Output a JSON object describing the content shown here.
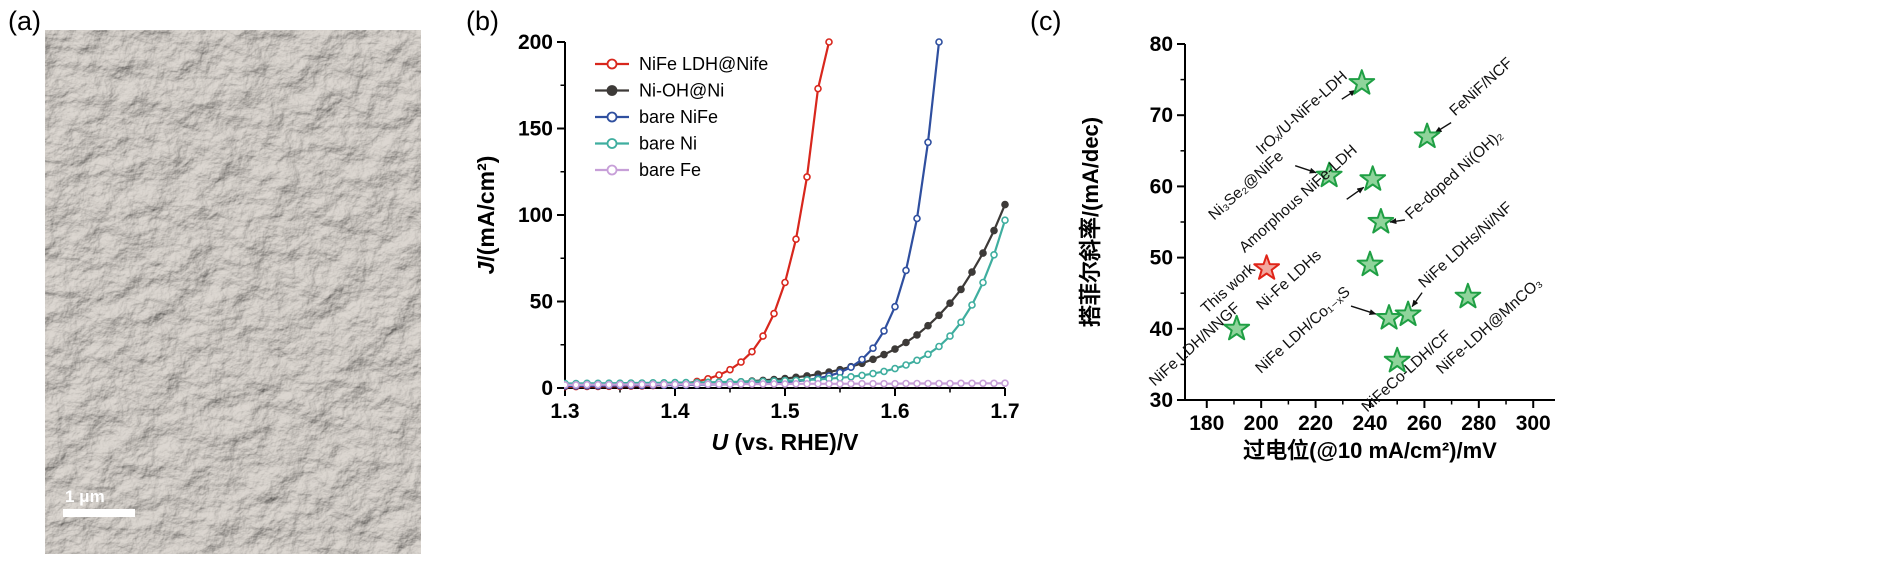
{
  "page": {
    "background": "#ffffff"
  },
  "panel_labels": {
    "a": "(a)",
    "b": "(b)",
    "c": "(c)"
  },
  "panel_a": {
    "description": "SEM image of nanosheet array",
    "scale_bar_label": "1 μm"
  },
  "chart_data": [
    {
      "id": "lsv_curves",
      "panel": "b",
      "type": "line",
      "xlabel": {
        "italic": "U",
        "rest": " (vs. RHE)/V"
      },
      "ylabel": {
        "italic": "J",
        "rest": "/(mA/cm²)"
      },
      "xlim": [
        1.3,
        1.7
      ],
      "ylim": [
        0,
        200
      ],
      "xticks": [
        1.3,
        1.4,
        1.5,
        1.6,
        1.7
      ],
      "xtick_labels": [
        "1.3",
        "1.4",
        "1.5",
        "1.6",
        "1.7"
      ],
      "xticks_minor": [
        1.35,
        1.45,
        1.55,
        1.65
      ],
      "yticks": [
        0,
        50,
        100,
        150,
        200
      ],
      "ytick_labels": [
        "0",
        "50",
        "100",
        "150",
        "200"
      ],
      "yticks_minor": [
        25,
        75,
        125,
        175
      ],
      "legend_position": "top-left",
      "x_start": 1.3,
      "x_step": 0.01,
      "series": [
        {
          "name": "NiFe LDH@Nife",
          "color": "#d8271d",
          "marker": "open",
          "y": [
            0.8,
            0.8,
            0.9,
            0.9,
            1.0,
            1.0,
            1.1,
            1.2,
            1.4,
            1.7,
            2.1,
            2.8,
            3.8,
            5.3,
            7.5,
            10.6,
            15,
            21,
            30,
            43,
            61,
            86,
            122,
            173,
            200
          ]
        },
        {
          "name": "Ni-OH@Ni",
          "color": "#3d3a38",
          "marker": "filled",
          "y": [
            1.5,
            1.5,
            1.6,
            1.6,
            1.7,
            1.7,
            1.8,
            1.9,
            2.0,
            2.1,
            2.2,
            2.4,
            2.6,
            2.8,
            3.0,
            3.3,
            3.6,
            4.0,
            4.4,
            4.9,
            5.5,
            6.2,
            7.0,
            8.0,
            9.2,
            10.6,
            12.3,
            14.3,
            16.6,
            19.3,
            22.5,
            26.3,
            30.7,
            36,
            42,
            49,
            57,
            67,
            78,
            91,
            106
          ]
        },
        {
          "name": "bare NiFe",
          "color": "#2f4f9f",
          "marker": "open",
          "y": [
            1.2,
            1.2,
            1.3,
            1.3,
            1.4,
            1.4,
            1.5,
            1.5,
            1.6,
            1.6,
            1.7,
            1.8,
            1.9,
            2.0,
            2.1,
            2.2,
            2.4,
            2.6,
            2.8,
            3.1,
            3.4,
            3.9,
            4.6,
            5.6,
            7.0,
            9.0,
            12,
            16.5,
            23,
            33,
            47,
            68,
            98,
            142,
            200
          ]
        },
        {
          "name": "bare Ni",
          "color": "#3fae9f",
          "marker": "open",
          "y": [
            2.6,
            2.6,
            2.7,
            2.7,
            2.8,
            2.8,
            2.9,
            2.9,
            3.0,
            3.0,
            3.1,
            3.1,
            3.2,
            3.3,
            3.4,
            3.5,
            3.6,
            3.7,
            3.8,
            4.0,
            4.2,
            4.4,
            4.7,
            5.0,
            5.4,
            5.9,
            6.5,
            7.3,
            8.3,
            9.6,
            11.2,
            13.3,
            16,
            19.5,
            24,
            30,
            38,
            48,
            61,
            77,
            97
          ]
        },
        {
          "name": "bare Fe",
          "color": "#c79fd8",
          "marker": "open",
          "y": [
            1.8,
            1.8,
            1.9,
            1.9,
            1.9,
            2.0,
            2.0,
            2.0,
            2.1,
            2.1,
            2.1,
            2.1,
            2.2,
            2.2,
            2.2,
            2.2,
            2.3,
            2.3,
            2.3,
            2.3,
            2.3,
            2.4,
            2.4,
            2.4,
            2.4,
            2.4,
            2.5,
            2.5,
            2.5,
            2.5,
            2.5,
            2.6,
            2.6,
            2.6,
            2.6,
            2.6,
            2.7,
            2.7,
            2.7,
            2.7,
            2.8
          ]
        }
      ]
    },
    {
      "id": "tafel_vs_overpotential",
      "panel": "c",
      "type": "scatter",
      "xlabel": {
        "italic": "",
        "rest": "过电位(@10 mA/cm²)/mV"
      },
      "ylabel": {
        "italic": "",
        "rest": "搭菲尔斜率/(mA/dec)"
      },
      "xlim": [
        172,
        308
      ],
      "ylim": [
        30,
        80
      ],
      "xticks": [
        180,
        200,
        220,
        240,
        260,
        280,
        300
      ],
      "xtick_labels": [
        "180",
        "200",
        "220",
        "240",
        "260",
        "280",
        "300"
      ],
      "xticks_minor": [
        190,
        210,
        230,
        250,
        270,
        290
      ],
      "yticks": [
        30,
        40,
        50,
        60,
        70,
        80
      ],
      "ytick_labels": [
        "30",
        "40",
        "50",
        "60",
        "70",
        "80"
      ],
      "yticks_minor": [
        35,
        45,
        55,
        65,
        75
      ],
      "marker": "star",
      "label_rotation": -42,
      "colors": {
        "star_green_stroke": "#1f9f44",
        "star_green_fill": "#8fd49b",
        "star_red_stroke": "#e02418",
        "star_red_fill": "#f2a79e"
      },
      "points": [
        {
          "label": "IrOₓ/U-NiFe-LDH",
          "x": 237,
          "y": 74.5,
          "color": "green",
          "label_offset": [
            -100,
            72
          ],
          "arrow": [
            -20,
            16,
            -6,
            7
          ]
        },
        {
          "label": "FeNiF/NCF",
          "x": 261,
          "y": 67,
          "color": "green",
          "label_offset": [
            28,
            -20
          ],
          "arrow": [
            24,
            -14,
            8,
            -4
          ]
        },
        {
          "label": "Ni₃Se₂@NiFe",
          "x": 225,
          "y": 61.5,
          "color": "green",
          "label_offset": [
            -115,
            45
          ],
          "arrow": [
            -34,
            -10,
            -13,
            -3
          ]
        },
        {
          "label": "Amorphous NiFe-LDH",
          "x": 241,
          "y": 61,
          "color": "green",
          "label_offset": [
            -128,
            74
          ],
          "arrow": [
            -26,
            20,
            -9,
            8
          ]
        },
        {
          "label": "Fe-doped Ni(OH)₂",
          "x": 244,
          "y": 55,
          "color": "green",
          "label_offset": [
            30,
            -2
          ],
          "arrow": [
            24,
            -2,
            9,
            0
          ]
        },
        {
          "label": "Ni-Fe LDHs",
          "x": 240,
          "y": 49,
          "color": "green",
          "label_offset": [
            -108,
            46
          ],
          "arrow": null
        },
        {
          "label": "This work",
          "x": 202,
          "y": 48.5,
          "color": "red",
          "label_offset": [
            -60,
            46
          ],
          "arrow": null
        },
        {
          "label": "NiFe LDH/NNGF",
          "x": 191,
          "y": 40,
          "color": "green",
          "label_offset": [
            -82,
            58
          ],
          "arrow": null
        },
        {
          "label": "NiFe LDH/Co₁₋ₓS",
          "x": 247,
          "y": 41.5,
          "color": "green",
          "label_offset": [
            -128,
            56
          ],
          "arrow": [
            -38,
            -12,
            -13,
            -4
          ]
        },
        {
          "label": "NiFe LDHs/Ni/NF",
          "x": 254,
          "y": 42,
          "color": "green",
          "label_offset": [
            16,
            -26
          ],
          "arrow": [
            14,
            -22,
            4,
            -8
          ]
        },
        {
          "label": "NiFeCo-LDH/CF",
          "x": 250,
          "y": 35.5,
          "color": "green",
          "label_offset": [
            -30,
            52
          ],
          "arrow": null
        },
        {
          "label": "NiFe-LDH@MnCO₃",
          "x": 276,
          "y": 44.5,
          "color": "green",
          "label_offset": [
            -26,
            78
          ],
          "arrow": null
        }
      ]
    }
  ]
}
